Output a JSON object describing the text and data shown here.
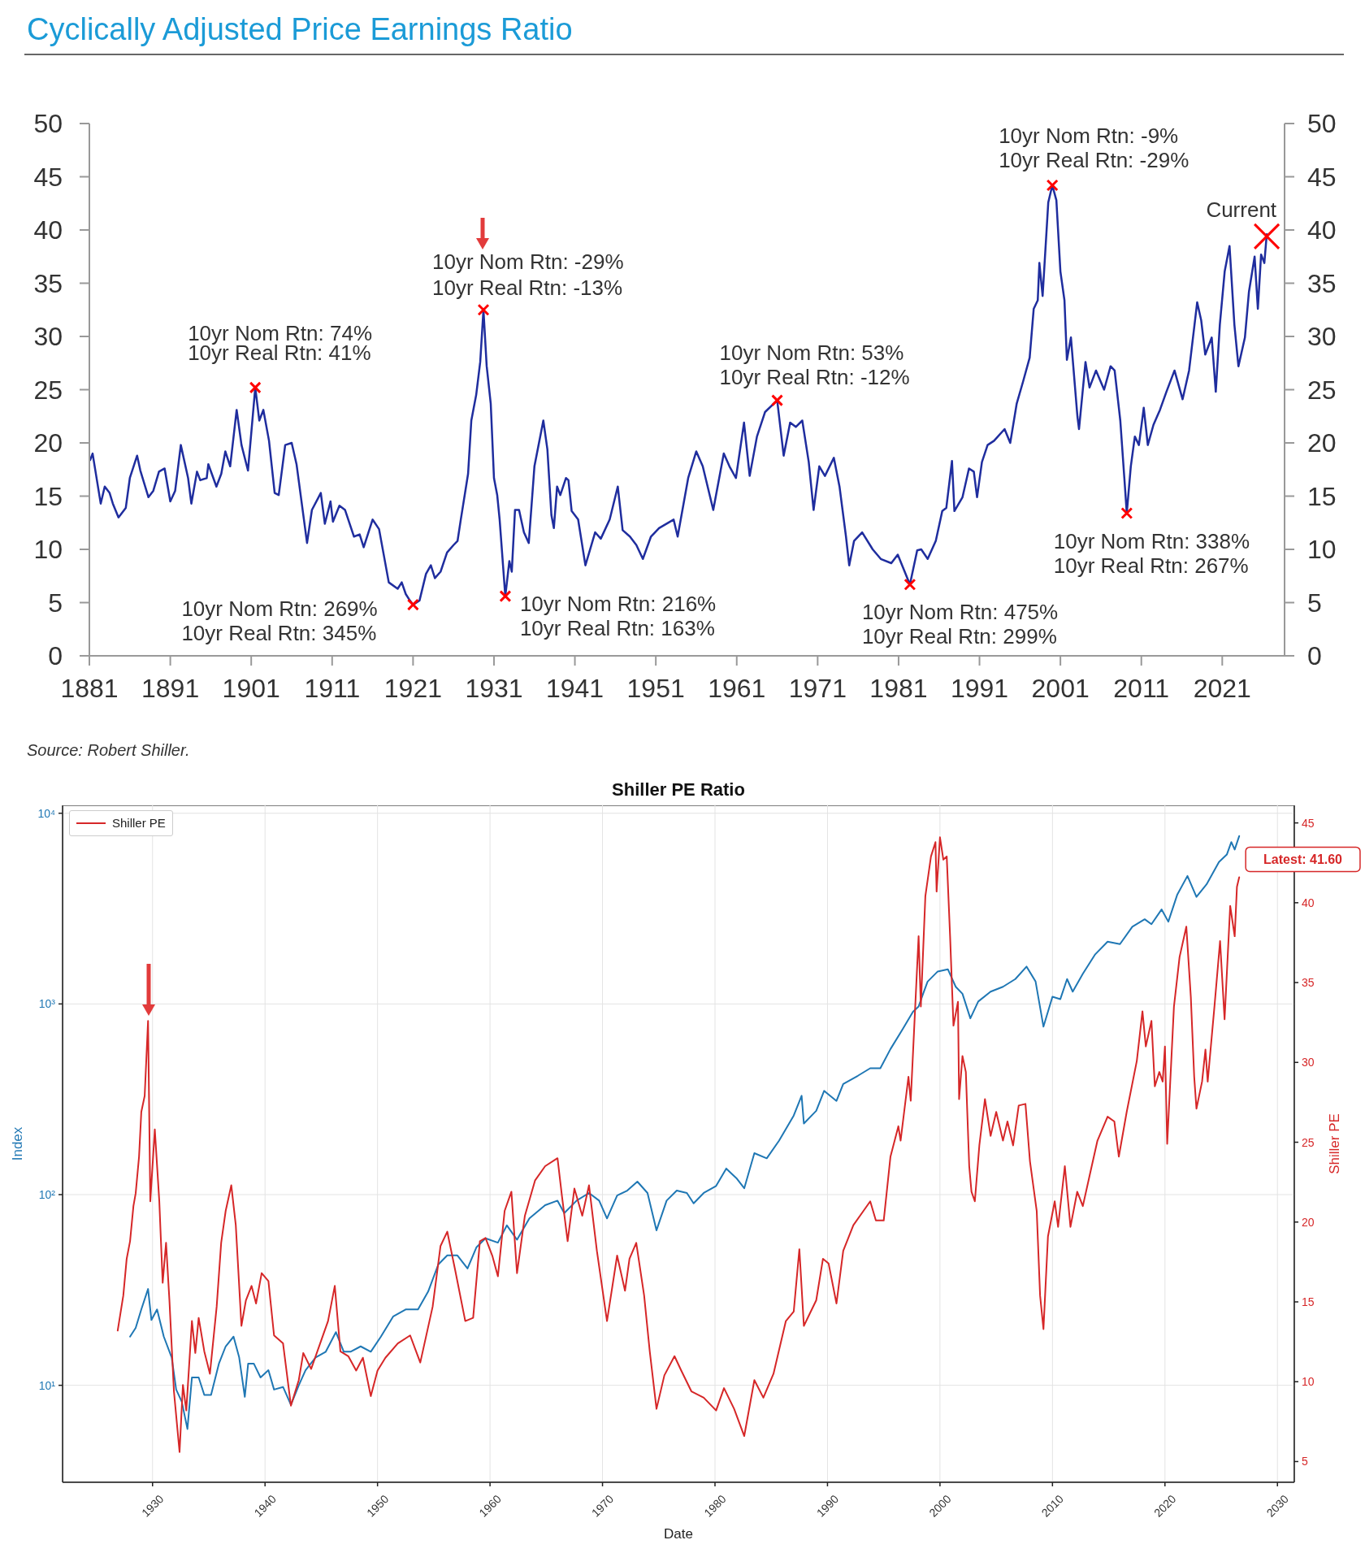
{
  "chart_data": [
    {
      "type": "line",
      "title": "Cyclically Adjusted Price Earnings Ratio",
      "series": [
        {
          "color": "#1f2d9e",
          "x": [
            1881.1,
            1881.4,
            1882.4,
            1882.9,
            1883.5,
            1883.9,
            1884.6,
            1885.5,
            1886.0,
            1886.9,
            1887.3,
            1888.3,
            1888.9,
            1889.6,
            1890.3,
            1891.0,
            1891.6,
            1892.3,
            1893.2,
            1893.6,
            1894.3,
            1894.7,
            1895.5,
            1895.7,
            1896.7,
            1897.3,
            1897.8,
            1898.4,
            1899.2,
            1899.8,
            1900.6,
            1901.5,
            1902.0,
            1902.5,
            1903.2,
            1903.9,
            1904.4,
            1905.2,
            1906.0,
            1906.6,
            1907.9,
            1908.5,
            1909.6,
            1910.1,
            1910.8,
            1911.1,
            1911.9,
            1912.6,
            1913.7,
            1914.4,
            1914.9,
            1916.0,
            1916.8,
            1918.0,
            1919.1,
            1919.6,
            1920.1,
            1920.6,
            1921.0,
            1921.8,
            1922.6,
            1923.2,
            1923.7,
            1924.4,
            1925.2,
            1926.0,
            1926.5,
            1926.9,
            1927.8,
            1928.2,
            1928.8,
            1929.3,
            1929.7,
            1930.1,
            1930.6,
            1931.0,
            1931.4,
            1931.7,
            1932.4,
            1932.9,
            1933.2,
            1933.6,
            1934.1,
            1934.7,
            1935.3,
            1936.0,
            1937.1,
            1937.6,
            1938.1,
            1938.4,
            1938.8,
            1939.2,
            1939.9,
            1940.2,
            1940.6,
            1941.4,
            1942.3,
            1943.5,
            1944.2,
            1945.3,
            1946.3,
            1946.9,
            1947.8,
            1948.6,
            1949.4,
            1950.4,
            1951.4,
            1953.2,
            1953.7,
            1955.0,
            1956.0,
            1956.8,
            1958.1,
            1959.4,
            1960.1,
            1960.9,
            1961.9,
            1962.6,
            1963.5,
            1964.5,
            1966.0,
            1966.8,
            1967.6,
            1968.3,
            1969.1,
            1969.9,
            1970.5,
            1971.2,
            1971.9,
            1973.0,
            1973.7,
            1974.5,
            1974.9,
            1975.5,
            1976.5,
            1977.8,
            1978.8,
            1980.1,
            1980.9,
            1982.4,
            1983.3,
            1983.8,
            1984.6,
            1985.6,
            1986.4,
            1986.9,
            1987.6,
            1987.9,
            1988.9,
            1989.7,
            1990.3,
            1990.7,
            1991.3,
            1992.0,
            1992.8,
            1994.1,
            1994.8,
            1995.6,
            1996.4,
            1997.2,
            1997.7,
            1998.2,
            1998.4,
            1998.8,
            1999.5,
            2000.0,
            2000.5,
            2001.0,
            2001.5,
            2001.8,
            2002.3,
            2003.1,
            2003.3,
            2004.1,
            2004.6,
            2005.4,
            2006.4,
            2007.2,
            2007.7,
            2008.4,
            2008.9,
            2009.2,
            2009.7,
            2010.2,
            2010.7,
            2011.3,
            2011.8,
            2012.5,
            2013.3,
            2014.1,
            2015.1,
            2016.1,
            2016.9,
            2017.9,
            2018.4,
            2018.9,
            2019.7,
            2020.2,
            2020.7,
            2021.3,
            2021.9,
            2022.5,
            2023.0,
            2023.8,
            2024.3,
            2025.0,
            2025.4,
            2025.8,
            2026.2,
            2026.5
          ],
          "values": [
            18.4,
            19.0,
            14.3,
            15.9,
            15.3,
            14.3,
            13.0,
            13.9,
            16.7,
            18.8,
            17.4,
            14.9,
            15.5,
            17.3,
            17.6,
            14.5,
            15.5,
            19.8,
            16.7,
            14.3,
            17.3,
            16.5,
            16.7,
            18.0,
            15.9,
            17.1,
            19.2,
            17.8,
            23.1,
            19.8,
            17.4,
            25.2,
            22.1,
            23.1,
            20.2,
            15.3,
            15.1,
            19.8,
            20.0,
            18.0,
            10.6,
            13.7,
            15.3,
            12.4,
            14.5,
            12.6,
            14.1,
            13.7,
            11.2,
            11.4,
            10.2,
            12.8,
            11.9,
            6.9,
            6.3,
            6.9,
            5.8,
            5.2,
            4.8,
            5.2,
            7.7,
            8.5,
            7.3,
            7.9,
            9.7,
            10.4,
            10.8,
            12.8,
            17.1,
            22.1,
            24.5,
            27.6,
            32.5,
            27.2,
            23.7,
            16.7,
            15.1,
            12.8,
            5.6,
            8.9,
            7.9,
            13.7,
            13.7,
            11.6,
            10.6,
            17.8,
            22.1,
            19.4,
            13.2,
            12.0,
            15.9,
            15.1,
            16.7,
            16.5,
            13.6,
            12.8,
            8.5,
            11.6,
            11.0,
            12.8,
            15.9,
            11.8,
            11.2,
            10.4,
            9.1,
            11.2,
            12.0,
            12.8,
            11.2,
            16.7,
            19.2,
            17.8,
            13.7,
            19.0,
            17.8,
            16.7,
            21.9,
            16.9,
            20.6,
            22.9,
            24.0,
            18.8,
            21.9,
            21.5,
            22.1,
            18.2,
            13.7,
            17.8,
            16.9,
            18.6,
            15.9,
            11.2,
            8.5,
            10.8,
            11.6,
            10.0,
            9.1,
            8.7,
            9.5,
            6.7,
            9.9,
            10.0,
            9.1,
            10.8,
            13.6,
            13.9,
            18.3,
            13.6,
            14.9,
            17.6,
            17.3,
            14.9,
            18.2,
            19.8,
            20.2,
            21.3,
            20.0,
            23.7,
            25.8,
            28.0,
            32.6,
            33.4,
            36.9,
            33.8,
            42.6,
            44.2,
            42.8,
            36.1,
            33.4,
            27.8,
            29.9,
            22.5,
            21.3,
            27.6,
            25.2,
            26.8,
            25.0,
            27.2,
            26.8,
            22.1,
            16.7,
            13.4,
            17.8,
            20.6,
            19.8,
            23.3,
            19.8,
            21.7,
            23.1,
            24.8,
            26.8,
            24.1,
            26.8,
            33.2,
            31.5,
            28.3,
            29.9,
            24.8,
            31.1,
            36.1,
            38.5,
            31.1,
            27.2,
            29.9,
            34.2,
            37.5,
            32.6,
            37.7,
            36.9,
            39.6
          ]
        },
        {
          "type": "scatter",
          "color": "#ff0000",
          "marker": "cross",
          "x": [
            1901.5,
            1921.0,
            1929.7,
            1932.4,
            1966.0,
            1982.4,
            2000.0,
            2009.2
          ],
          "values": [
            25.2,
            4.8,
            32.5,
            5.6,
            24.0,
            6.7,
            44.2,
            13.4
          ]
        },
        {
          "type": "scatter",
          "name": "Current",
          "color": "#ff0000",
          "marker": "cross",
          "x": [
            2026.5
          ],
          "values": [
            39.4
          ]
        }
      ],
      "xlim": [
        1881,
        2028.7
      ],
      "xticks": [
        1881,
        1891,
        1901,
        1911,
        1921,
        1931,
        1941,
        1951,
        1961,
        1971,
        1981,
        1991,
        2001,
        2011,
        2021
      ],
      "ylim": [
        0,
        50
      ],
      "yticks": [
        0,
        5,
        10,
        15,
        20,
        25,
        30,
        35,
        40,
        45,
        50
      ],
      "y2lim": [
        0,
        50
      ],
      "y2ticks": [
        0,
        5,
        10,
        15,
        20,
        25,
        30,
        35,
        40,
        45,
        50
      ],
      "annotations": [
        {
          "text": "10yr Nom Rtn: 74%\n10yr Real Rtn: 41%",
          "x": 1901.5,
          "y": 25.2
        },
        {
          "text": "10yr Nom Rtn: 269%\n10yr Real Rtn: 345%",
          "x": 1921.0,
          "y": 4.8
        },
        {
          "text": "10yr Nom Rtn: -29%\n10yr Real Rtn: -13%",
          "x": 1929.7,
          "y": 32.5
        },
        {
          "text": "10yr Nom Rtn: 216%\n10yr Real Rtn: 163%",
          "x": 1932.4,
          "y": 5.6
        },
        {
          "text": "10yr Nom Rtn: 53%\n10yr Real Rtn: -12%",
          "x": 1966.0,
          "y": 24.0
        },
        {
          "text": "10yr Nom Rtn: 475%\n10yr Real Rtn: 299%",
          "x": 1982.4,
          "y": 6.7
        },
        {
          "text": "10yr Nom Rtn: -9%\n10yr Real Rtn: -29%",
          "x": 2000.0,
          "y": 44.2
        },
        {
          "text": "10yr Nom Rtn: 338%\n10yr Real Rtn: 267%",
          "x": 2009.2,
          "y": 13.4
        },
        "Source: Robert Shiller."
      ]
    },
    {
      "type": "line",
      "title": "Shiller PE Ratio",
      "xlabel": "Date",
      "ylabel": "Index",
      "y2label": "Shiller PE",
      "series": [
        {
          "color": "#1f77b4",
          "x": [
            1928.0,
            1928.5,
            1929.0,
            1929.6,
            1929.9,
            1930.4,
            1931.0,
            1931.7,
            1932.1,
            1932.6,
            1933.1,
            1933.5,
            1934.1,
            1934.6,
            1935.2,
            1935.9,
            1936.5,
            1937.2,
            1937.7,
            1938.2,
            1938.5,
            1939.0,
            1939.6,
            1940.3,
            1940.8,
            1941.6,
            1942.3,
            1943.0,
            1943.6,
            1944.5,
            1945.4,
            1946.3,
            1947.0,
            1947.6,
            1948.5,
            1949.4,
            1950.3,
            1951.4,
            1952.5,
            1953.6,
            1954.5,
            1955.4,
            1956.2,
            1957.1,
            1958.0,
            1958.8,
            1959.6,
            1960.7,
            1961.5,
            1962.4,
            1963.5,
            1964.9,
            1966.0,
            1966.6,
            1967.7,
            1968.8,
            1969.7,
            1970.4,
            1971.3,
            1972.2,
            1973.1,
            1974.0,
            1974.8,
            1975.7,
            1976.6,
            1977.5,
            1978.1,
            1979.0,
            1980.1,
            1981.0,
            1981.9,
            1982.6,
            1983.5,
            1984.6,
            1985.7,
            1987.0,
            1987.7,
            1987.9,
            1989.0,
            1989.7,
            1990.8,
            1991.4,
            1992.7,
            1993.8,
            1994.7,
            1995.6,
            1996.7,
            1997.6,
            1998.1,
            1998.5,
            1998.9,
            1999.8,
            2000.7,
            2001.4,
            2002.0,
            2002.7,
            2003.4,
            2004.5,
            2005.6,
            2006.7,
            2007.7,
            2008.5,
            2009.2,
            2010.0,
            2010.7,
            2011.3,
            2011.8,
            2012.7,
            2013.8,
            2014.9,
            2016.0,
            2017.1,
            2018.2,
            2018.8,
            2019.7,
            2020.3,
            2021.1,
            2022.0,
            2022.8,
            2023.7,
            2024.8,
            2025.5,
            2025.9,
            2026.2,
            2026.6
          ],
          "values": [
            18,
            20,
            25,
            32,
            22,
            25,
            18,
            14,
            9.5,
            8.2,
            5.9,
            11,
            11,
            8.9,
            8.9,
            13,
            16,
            18,
            14,
            8.7,
            13,
            13,
            11,
            12,
            9.5,
            9.8,
            7.9,
            10,
            12,
            14,
            15,
            19,
            15,
            15,
            16,
            15,
            18,
            23,
            25,
            25,
            31,
            43,
            48,
            48,
            41,
            53,
            59,
            56,
            69,
            58,
            75,
            88,
            93,
            80,
            93,
            102,
            93,
            75,
            99,
            105,
            117,
            102,
            65,
            93,
            105,
            102,
            90,
            102,
            111,
            137,
            122,
            108,
            165,
            155,
            192,
            260,
            330,
            236,
            275,
            350,
            310,
            380,
            420,
            460,
            460,
            580,
            740,
            910,
            970,
            1130,
            1310,
            1480,
            1520,
            1230,
            1130,
            840,
            1030,
            1160,
            1230,
            1350,
            1570,
            1310,
            760,
            1090,
            1060,
            1350,
            1160,
            1440,
            1820,
            2120,
            2060,
            2540,
            2780,
            2620,
            3130,
            2700,
            3750,
            4690,
            3640,
            4240,
            5550,
            6070,
            7060,
            6450,
            7590
          ]
        },
        {
          "name": "Shiller PE",
          "color": "#d62728",
          "axis": "y2",
          "x": [
            1926.9,
            1927.4,
            1927.7,
            1928.0,
            1928.3,
            1928.5,
            1928.8,
            1929.0,
            1929.3,
            1929.6,
            1929.8,
            1930.2,
            1930.6,
            1930.9,
            1931.2,
            1931.5,
            1931.9,
            1932.4,
            1932.7,
            1933.0,
            1933.5,
            1933.8,
            1934.1,
            1934.6,
            1935.1,
            1935.7,
            1936.1,
            1936.5,
            1937.0,
            1937.4,
            1937.9,
            1938.3,
            1938.8,
            1939.2,
            1939.7,
            1940.3,
            1940.8,
            1941.6,
            1942.3,
            1943.0,
            1943.4,
            1944.1,
            1945.0,
            1945.6,
            1946.2,
            1946.7,
            1947.4,
            1948.1,
            1948.7,
            1949.4,
            1950.0,
            1950.7,
            1951.8,
            1952.9,
            1953.8,
            1954.9,
            1955.6,
            1956.2,
            1956.9,
            1957.8,
            1958.5,
            1959.1,
            1959.6,
            1960.2,
            1960.7,
            1961.3,
            1961.9,
            1962.4,
            1963.1,
            1964.0,
            1964.9,
            1966.0,
            1966.4,
            1966.9,
            1967.5,
            1968.2,
            1968.8,
            1969.5,
            1970.4,
            1971.3,
            1972.0,
            1972.4,
            1973.0,
            1973.7,
            1974.2,
            1974.8,
            1975.5,
            1976.4,
            1977.0,
            1977.9,
            1979.0,
            1980.1,
            1980.8,
            1981.7,
            1982.6,
            1983.5,
            1984.3,
            1985.2,
            1986.3,
            1987.0,
            1987.5,
            1987.9,
            1989.0,
            1989.6,
            1990.1,
            1990.8,
            1991.4,
            1992.3,
            1993.2,
            1993.8,
            1994.3,
            1995.0,
            1995.6,
            1996.3,
            1996.5,
            1997.2,
            1997.4,
            1997.8,
            1998.1,
            1998.3,
            1998.7,
            1999.2,
            1999.6,
            1999.7,
            2000.0,
            2000.3,
            2000.6,
            2000.9,
            2001.2,
            2001.6,
            2001.7,
            2002.0,
            2002.3,
            2002.6,
            2002.8,
            2003.1,
            2003.5,
            2004.0,
            2004.5,
            2005.0,
            2005.6,
            2006.0,
            2006.5,
            2007.0,
            2007.6,
            2008.0,
            2008.6,
            2008.9,
            2009.2,
            2009.6,
            2010.2,
            2010.5,
            2011.1,
            2011.6,
            2012.2,
            2012.7,
            2013.3,
            2014.0,
            2014.9,
            2015.5,
            2015.9,
            2016.6,
            2017.5,
            2018.0,
            2018.3,
            2018.8,
            2019.1,
            2019.5,
            2019.8,
            2020.0,
            2020.2,
            2020.8,
            2021.3,
            2021.9,
            2022.3,
            2022.6,
            2022.8,
            2023.3,
            2023.6,
            2023.8,
            2024.4,
            2024.9,
            2025.3,
            2025.8,
            2026.2,
            2026.4,
            2026.6
          ],
          "values": [
            13.2,
            15.4,
            17.7,
            18.8,
            21.0,
            21.8,
            24.1,
            26.9,
            27.9,
            32.6,
            21.3,
            25.8,
            21.3,
            16.2,
            18.7,
            15.1,
            9.4,
            5.6,
            9.8,
            8.2,
            13.8,
            11.8,
            14.0,
            11.9,
            10.5,
            14.7,
            18.7,
            20.7,
            22.3,
            19.8,
            13.5,
            15.1,
            16.0,
            14.9,
            16.8,
            16.3,
            12.9,
            12.4,
            8.5,
            10.1,
            11.8,
            10.8,
            12.6,
            13.8,
            16.0,
            11.9,
            11.6,
            10.7,
            11.5,
            9.1,
            10.7,
            11.5,
            12.4,
            12.9,
            11.2,
            14.7,
            18.5,
            19.4,
            17.0,
            13.8,
            14.0,
            18.8,
            19.0,
            17.9,
            16.6,
            20.7,
            21.9,
            16.8,
            20.4,
            22.6,
            23.5,
            24.0,
            21.6,
            18.8,
            22.1,
            20.4,
            22.3,
            18.2,
            13.8,
            17.9,
            15.7,
            17.7,
            18.7,
            15.4,
            11.9,
            8.3,
            10.4,
            11.6,
            10.7,
            9.4,
            9.0,
            8.2,
            9.6,
            8.3,
            6.6,
            10.1,
            9.0,
            10.5,
            13.8,
            14.4,
            18.3,
            13.5,
            15.1,
            17.7,
            17.4,
            14.9,
            18.2,
            19.8,
            20.7,
            21.3,
            20.1,
            20.1,
            24.1,
            26.0,
            25.1,
            29.1,
            27.6,
            33.5,
            37.9,
            33.5,
            40.4,
            42.9,
            43.8,
            40.7,
            44.1,
            42.7,
            42.9,
            37.9,
            32.3,
            33.8,
            27.7,
            30.4,
            29.4,
            23.5,
            21.9,
            21.3,
            24.8,
            27.7,
            25.4,
            26.9,
            25.1,
            26.3,
            24.8,
            27.3,
            27.4,
            23.8,
            20.7,
            15.4,
            13.3,
            19.1,
            21.3,
            19.7,
            23.5,
            19.7,
            21.9,
            21.0,
            22.9,
            25.1,
            26.6,
            26.3,
            24.1,
            26.9,
            30.1,
            33.2,
            31.0,
            32.6,
            28.5,
            29.4,
            28.8,
            31.0,
            24.9,
            33.5,
            36.6,
            38.5,
            34.1,
            29.1,
            27.1,
            28.8,
            30.8,
            28.8,
            33.5,
            37.6,
            32.7,
            39.8,
            37.9,
            41.0,
            41.6
          ]
        }
      ],
      "xlim": [
        1922.0,
        2031.5
      ],
      "xticks": [
        1930,
        1940,
        1950,
        1960,
        1970,
        1980,
        1990,
        2000,
        2010,
        2020,
        2030
      ],
      "ylim": [
        3.1,
        11000
      ],
      "yticks": [
        {
          "value": 10,
          "label": "10¹"
        },
        {
          "value": 100,
          "label": "10²"
        },
        {
          "value": 1000,
          "label": "10³"
        },
        {
          "value": 10000,
          "label": "10⁴"
        }
      ],
      "y2lim": [
        3.7,
        46.1
      ],
      "y2ticks": [
        5,
        10,
        15,
        20,
        25,
        30,
        35,
        40,
        45
      ],
      "log": "y",
      "grid": true,
      "legend": "top left",
      "annotations": [
        "Latest: 41.60"
      ]
    }
  ]
}
